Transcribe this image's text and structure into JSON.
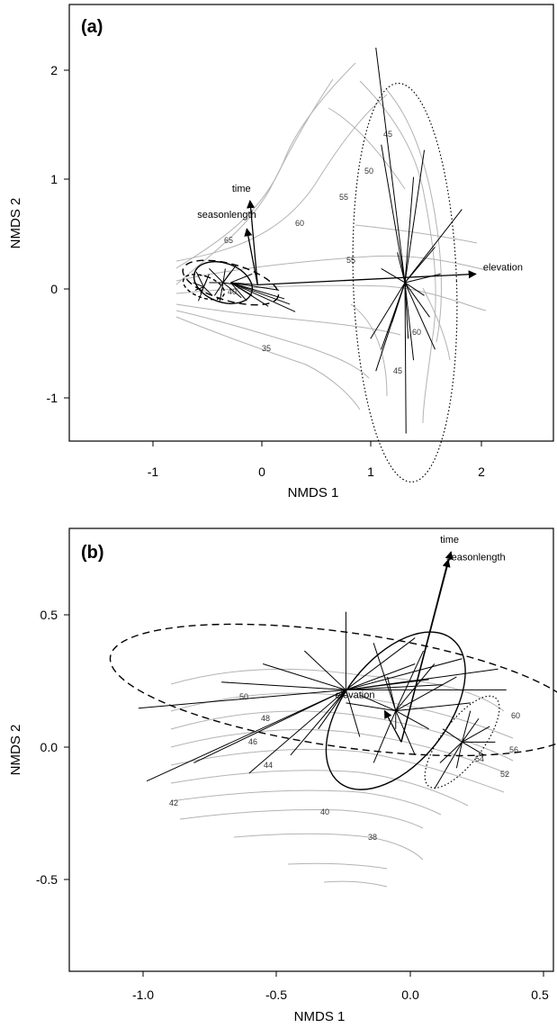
{
  "chart_data": [
    {
      "type": "scatter",
      "panel_label": "(a)",
      "xlabel": "NMDS 1",
      "ylabel": "NMDS 2",
      "xlim": [
        -1.75,
        2.75
      ],
      "ylim": [
        -1.45,
        2.6
      ],
      "xticks": [
        -1,
        0,
        1,
        2
      ],
      "yticks": [
        -1,
        0,
        1,
        2
      ],
      "xtick_labels": [
        "-1",
        "0",
        "1",
        "2"
      ],
      "ytick_labels": [
        "-1",
        "0",
        "1",
        "2"
      ],
      "grid": false,
      "vectors": [
        {
          "name": "time",
          "x": -0.07,
          "y": 0.78
        },
        {
          "name": "seasonlength",
          "x": -0.1,
          "y": 0.52
        },
        {
          "name": "elevation",
          "x": 2.03,
          "y": 0.1
        }
      ],
      "groups": [
        {
          "line_style": "dashed-short",
          "centroid": [
            -0.5,
            -0.02
          ],
          "ellipse": {
            "rx": 0.1,
            "ry": 0.2,
            "angle_deg": 70
          },
          "points": [
            [
              -0.57,
              0.12
            ],
            [
              -0.55,
              -0.15
            ],
            [
              -0.45,
              0.1
            ],
            [
              -0.6,
              0.02
            ],
            [
              -0.42,
              -0.1
            ],
            [
              -0.53,
              -0.08
            ],
            [
              -0.47,
              0.05
            ],
            [
              -0.58,
              -0.05
            ]
          ]
        },
        {
          "line_style": "solid",
          "centroid": [
            -0.32,
            0.02
          ],
          "ellipse": {
            "rx": 0.18,
            "ry": 0.28,
            "angle_deg": 70
          },
          "points": [
            [
              -0.45,
              0.15
            ],
            [
              -0.2,
              0.18
            ],
            [
              -0.15,
              -0.12
            ],
            [
              -0.4,
              -0.1
            ],
            [
              -0.25,
              0.12
            ],
            [
              -0.35,
              -0.15
            ],
            [
              -0.45,
              0.02
            ],
            [
              -0.18,
              0.0
            ],
            [
              -0.3,
              0.15
            ]
          ]
        },
        {
          "line_style": "dashed",
          "centroid": [
            -0.25,
            0.02
          ],
          "ellipse": {
            "rx": 0.46,
            "ry": 0.17,
            "angle_deg": -16
          },
          "points": [
            [
              0.35,
              -0.25
            ],
            [
              0.1,
              -0.2
            ],
            [
              0.25,
              -0.13
            ],
            [
              -0.05,
              -0.1
            ],
            [
              0.2,
              -0.05
            ],
            [
              -0.1,
              -0.15
            ],
            [
              0.0,
              0.0
            ],
            [
              -0.05,
              0.1
            ],
            [
              0.3,
              -0.18
            ]
          ]
        },
        {
          "line_style": "dotted",
          "centroid": [
            1.37,
            0.02
          ],
          "ellipse": {
            "rx": 0.48,
            "ry": 1.85,
            "angle_deg": 2
          },
          "points": [
            [
              1.1,
              2.2
            ],
            [
              1.15,
              1.3
            ],
            [
              1.55,
              1.25
            ],
            [
              1.45,
              1.0
            ],
            [
              1.9,
              0.7
            ],
            [
              1.65,
              0.35
            ],
            [
              1.7,
              0.1
            ],
            [
              1.55,
              -0.1
            ],
            [
              1.6,
              -0.3
            ],
            [
              1.65,
              -0.6
            ],
            [
              1.4,
              -0.5
            ],
            [
              1.15,
              -0.6
            ],
            [
              1.1,
              -0.8
            ],
            [
              1.05,
              -0.5
            ],
            [
              1.25,
              -0.35
            ],
            [
              1.38,
              -1.38
            ],
            [
              1.15,
              0.15
            ],
            [
              1.3,
              0.3
            ],
            [
              1.45,
              -0.7
            ]
          ]
        }
      ],
      "contours": [
        {
          "label": "65"
        },
        {
          "label": "60"
        },
        {
          "label": "55"
        },
        {
          "label": "55"
        },
        {
          "label": "50"
        },
        {
          "label": "45"
        },
        {
          "label": "40"
        },
        {
          "label": "35"
        },
        {
          "label": "60"
        },
        {
          "label": "45"
        }
      ]
    },
    {
      "type": "scatter",
      "panel_label": "(b)",
      "xlabel": "NMDS 1",
      "ylabel": "NMDS 2",
      "xlim": [
        -1.2,
        0.55
      ],
      "ylim": [
        -0.88,
        0.82
      ],
      "xticks": [
        -1.0,
        -0.5,
        0.0,
        0.5
      ],
      "yticks": [
        -0.5,
        0.0,
        0.5
      ],
      "xtick_labels": [
        "-1.0",
        "-0.5",
        "0.0",
        "0.5"
      ],
      "ytick_labels": [
        "-0.5",
        "0.0",
        "0.5"
      ],
      "grid": false,
      "vectors": [
        {
          "name": "elevation",
          "x": -0.06,
          "y": 0.12
        },
        {
          "name": "time",
          "x": 0.18,
          "y": 0.73
        },
        {
          "name": "seasonlength",
          "x": 0.17,
          "y": 0.7
        }
      ],
      "groups": [
        {
          "line_style": "dashed",
          "centroid": [
            -0.2,
            0.2
          ],
          "ellipse": {
            "rx": 0.86,
            "ry": 0.22,
            "angle_deg": -8
          },
          "points": [
            [
              -0.95,
              0.13
            ],
            [
              -0.92,
              -0.15
            ],
            [
              -0.75,
              -0.08
            ],
            [
              -0.55,
              -0.12
            ],
            [
              -0.4,
              -0.05
            ],
            [
              -0.65,
              0.23
            ],
            [
              -0.35,
              0.35
            ],
            [
              0.05,
              0.3
            ],
            [
              0.1,
              0.24
            ],
            [
              0.15,
              0.22
            ],
            [
              0.35,
              0.28
            ],
            [
              0.38,
              0.2
            ],
            [
              -0.5,
              0.3
            ],
            [
              -0.2,
              0.5
            ],
            [
              0.05,
              0.4
            ],
            [
              0.22,
              0.32
            ],
            [
              -0.3,
              0.05
            ],
            [
              -0.15,
              0.02
            ]
          ]
        },
        {
          "line_style": "solid",
          "centroid": [
            -0.02,
            0.12
          ],
          "ellipse": {
            "rx": 0.33,
            "ry": 0.2,
            "angle_deg": 52
          },
          "points": [
            [
              -0.1,
              0.38
            ],
            [
              0.08,
              0.35
            ],
            [
              0.2,
              0.25
            ],
            [
              -0.05,
              0.25
            ],
            [
              -0.15,
              0.18
            ],
            [
              0.1,
              0.05
            ],
            [
              -0.1,
              -0.08
            ],
            [
              0.05,
              -0.05
            ],
            [
              -0.2,
              0.15
            ],
            [
              0.12,
              0.3
            ],
            [
              -0.02,
              0.05
            ],
            [
              0.25,
              0.15
            ]
          ]
        },
        {
          "line_style": "dotted",
          "centroid": [
            0.22,
            0.0
          ],
          "ellipse": {
            "rx": 0.2,
            "ry": 0.08,
            "angle_deg": 53
          },
          "points": [
            [
              0.28,
              0.09
            ],
            [
              0.32,
              0.06
            ],
            [
              0.15,
              0.05
            ],
            [
              0.14,
              -0.08
            ],
            [
              0.3,
              -0.05
            ],
            [
              0.25,
              0.12
            ],
            [
              0.12,
              -0.18
            ],
            [
              0.2,
              -0.1
            ],
            [
              0.34,
              0.0
            ]
          ]
        }
      ],
      "contours": [
        {
          "label": "60"
        },
        {
          "label": "56"
        },
        {
          "label": "54"
        },
        {
          "label": "52"
        },
        {
          "label": "50"
        },
        {
          "label": "48"
        },
        {
          "label": "46"
        },
        {
          "label": "44"
        },
        {
          "label": "42"
        },
        {
          "label": "40"
        },
        {
          "label": "38"
        }
      ]
    }
  ]
}
